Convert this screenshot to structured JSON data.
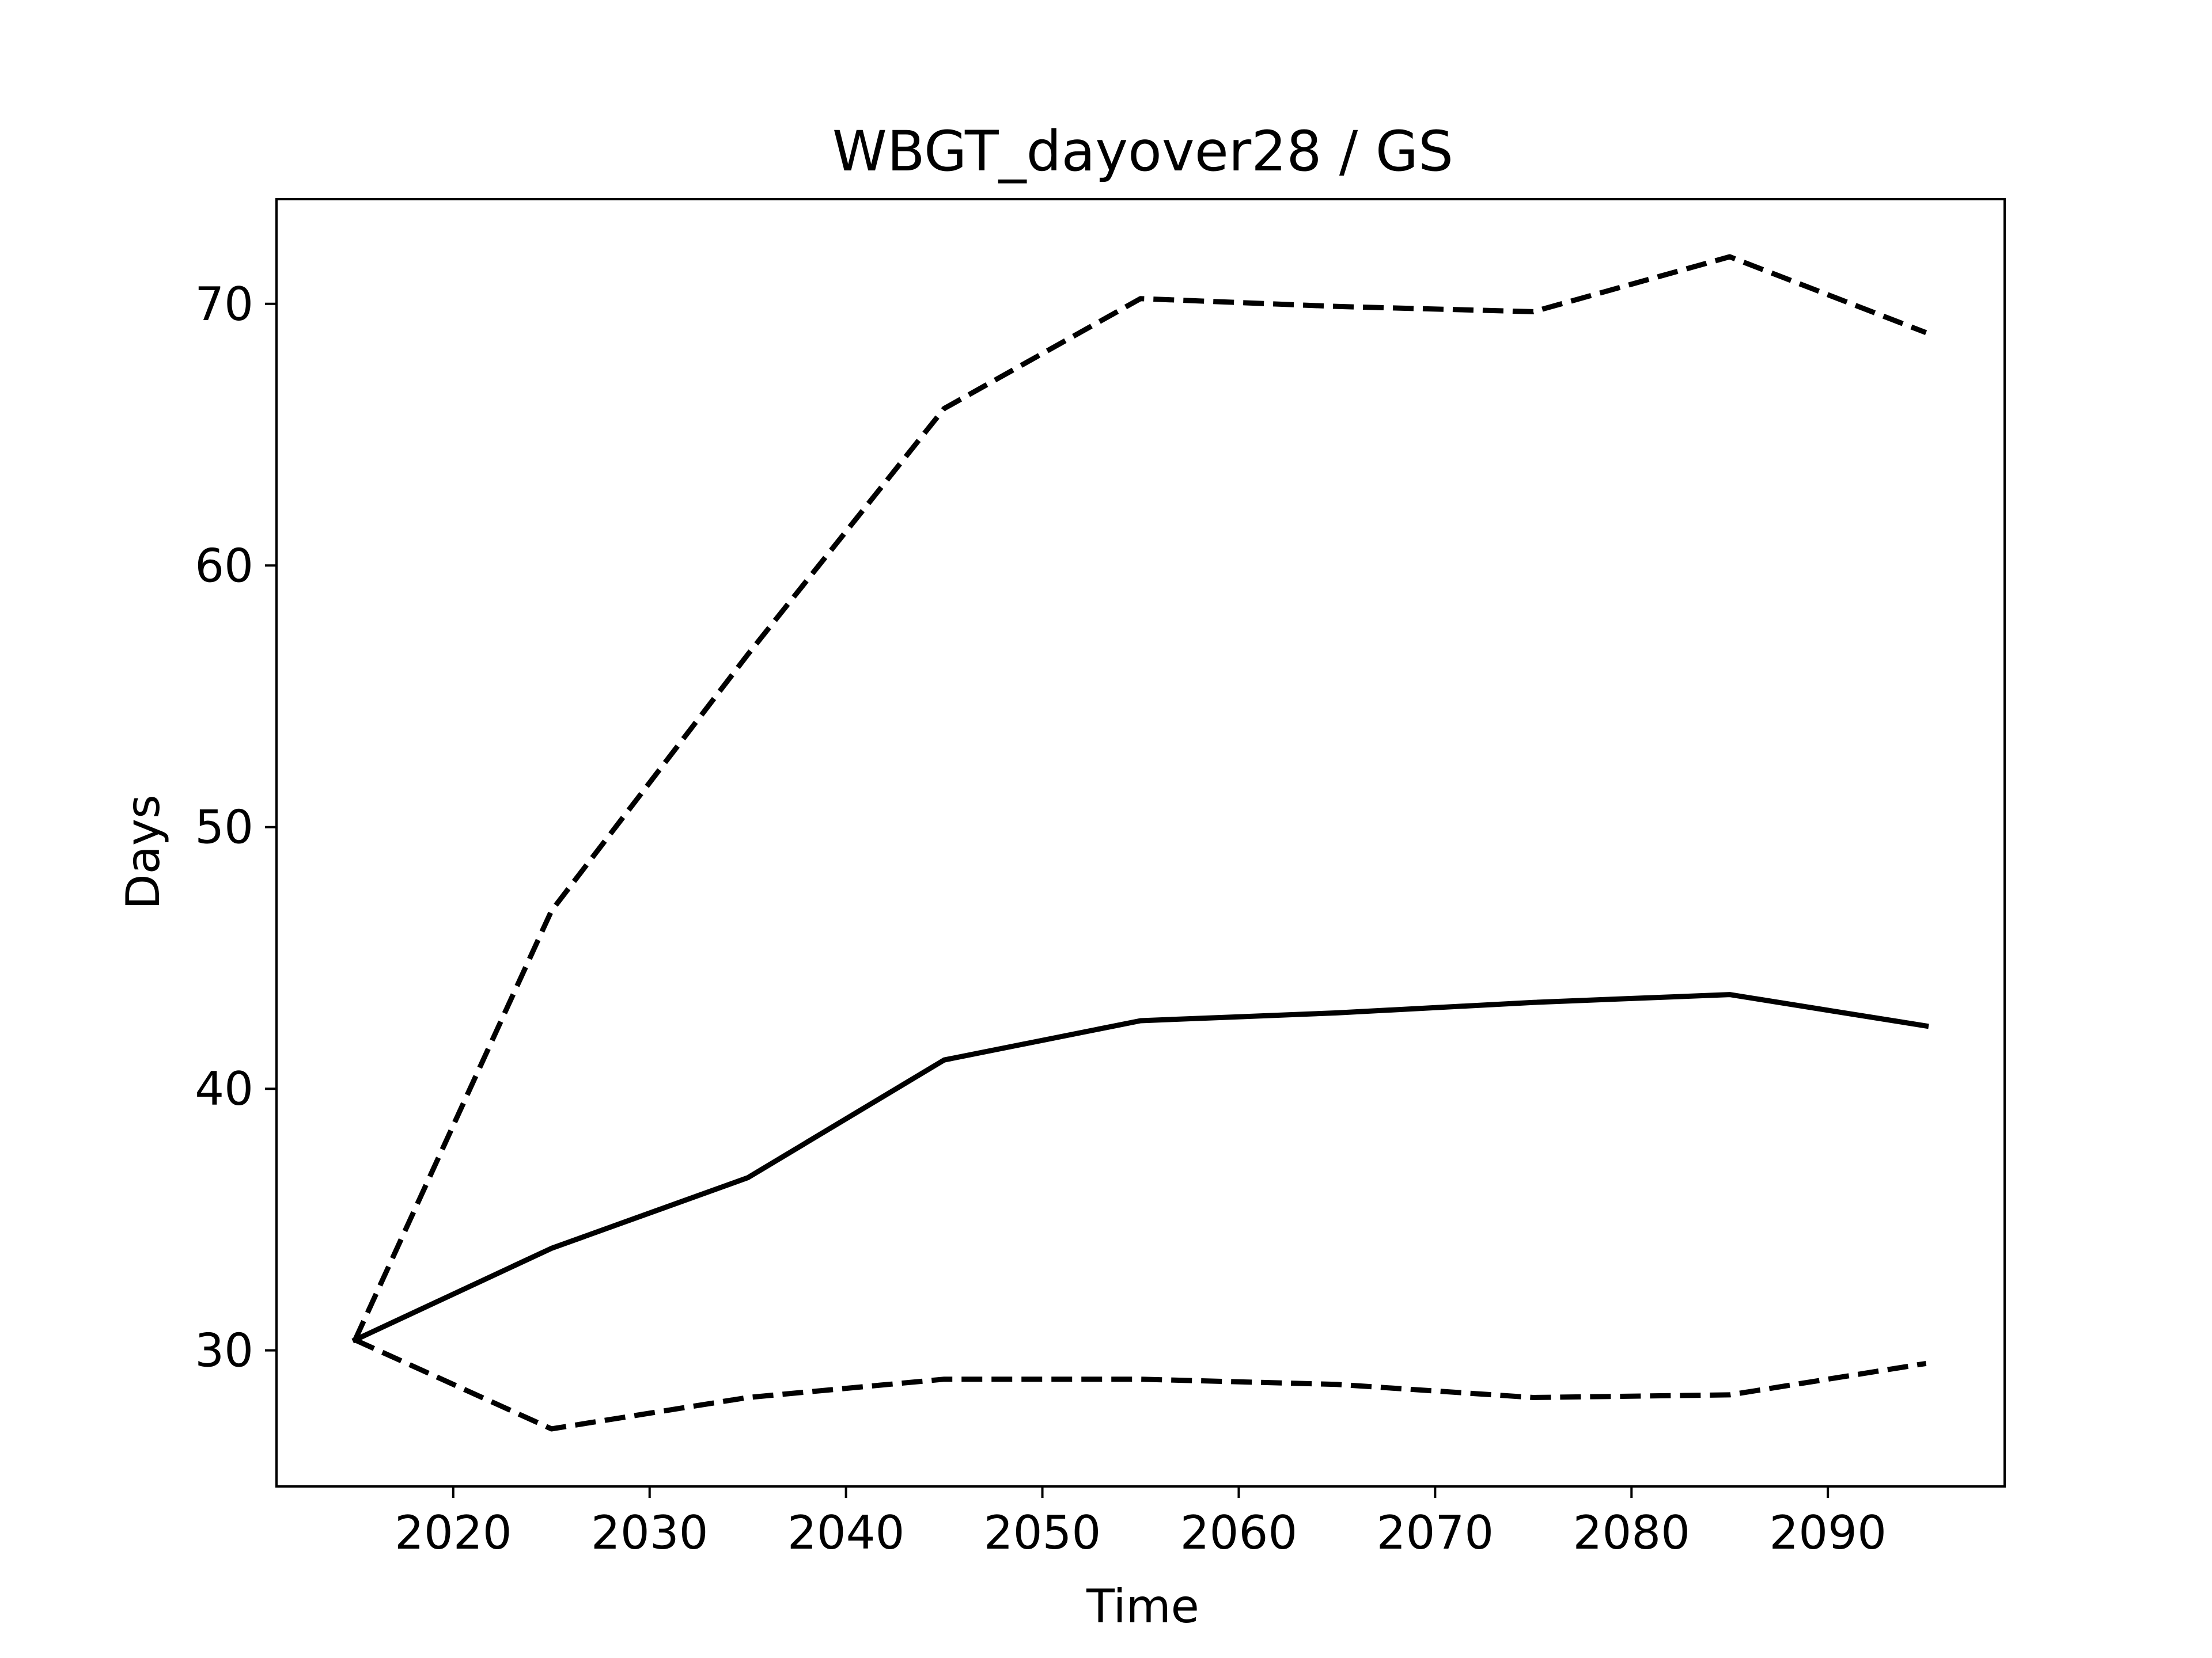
{
  "chart_data": {
    "type": "line",
    "title": "WBGT_dayover28 / GS",
    "xlabel": "Time",
    "ylabel": "Days",
    "xlim": [
      2011,
      2099
    ],
    "ylim": [
      24.8,
      74.0
    ],
    "xticks": [
      2020,
      2030,
      2040,
      2050,
      2060,
      2070,
      2080,
      2090
    ],
    "yticks": [
      30,
      40,
      50,
      60,
      70
    ],
    "grid": false,
    "legend": "none",
    "x": [
      2015,
      2025,
      2035,
      2045,
      2055,
      2065,
      2075,
      2085,
      2095
    ],
    "series": [
      {
        "style": "solid",
        "color": "#000000",
        "values": [
          30.4,
          33.9,
          36.6,
          41.1,
          42.6,
          42.9,
          43.3,
          43.6,
          42.4
        ]
      },
      {
        "style": "dashed",
        "color": "#000000",
        "values": [
          30.4,
          46.8,
          56.6,
          66.0,
          70.2,
          69.9,
          69.7,
          71.8,
          68.9
        ]
      },
      {
        "style": "dashed",
        "color": "#000000",
        "values": [
          30.4,
          27.0,
          28.2,
          28.9,
          28.9,
          28.7,
          28.2,
          28.3,
          29.5
        ]
      }
    ]
  }
}
